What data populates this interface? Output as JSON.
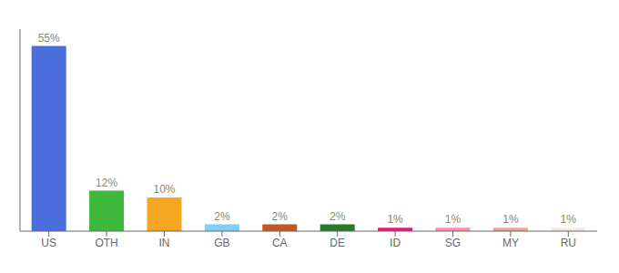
{
  "chart_data": {
    "type": "bar",
    "categories": [
      "US",
      "OTH",
      "IN",
      "GB",
      "CA",
      "DE",
      "ID",
      "SG",
      "MY",
      "RU"
    ],
    "values": [
      55,
      12,
      10,
      2,
      2,
      2,
      1,
      1,
      1,
      1
    ],
    "value_labels": [
      "55%",
      "12%",
      "10%",
      "2%",
      "2%",
      "2%",
      "1%",
      "1%",
      "1%",
      "1%"
    ],
    "colors": [
      "#4a6edb",
      "#3db83d",
      "#f5a623",
      "#7ecef5",
      "#c05820",
      "#2a7a2a",
      "#e8187a",
      "#f48fb1",
      "#e8a898",
      "#f0eedc"
    ],
    "ylim": [
      0,
      60
    ],
    "data_labels": true,
    "tick_labels": "x"
  }
}
